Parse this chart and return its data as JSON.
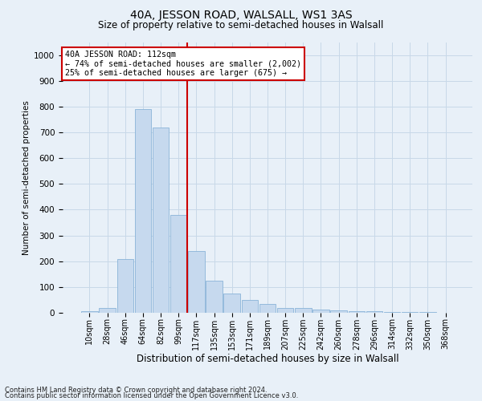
{
  "title": "40A, JESSON ROAD, WALSALL, WS1 3AS",
  "subtitle": "Size of property relative to semi-detached houses in Walsall",
  "xlabel": "Distribution of semi-detached houses by size in Walsall",
  "ylabel": "Number of semi-detached properties",
  "footnote1": "Contains HM Land Registry data © Crown copyright and database right 2024.",
  "footnote2": "Contains public sector information licensed under the Open Government Licence v3.0.",
  "bar_labels": [
    "10sqm",
    "28sqm",
    "46sqm",
    "64sqm",
    "82sqm",
    "99sqm",
    "117sqm",
    "135sqm",
    "153sqm",
    "171sqm",
    "189sqm",
    "207sqm",
    "225sqm",
    "242sqm",
    "260sqm",
    "278sqm",
    "296sqm",
    "314sqm",
    "332sqm",
    "350sqm",
    "368sqm"
  ],
  "bar_values": [
    5,
    20,
    210,
    790,
    720,
    380,
    240,
    125,
    75,
    50,
    35,
    20,
    20,
    12,
    8,
    5,
    5,
    3,
    2,
    2,
    1
  ],
  "bar_color": "#c6d9ee",
  "bar_edge_color": "#8ab4d8",
  "grid_color": "#c8d8e8",
  "background_color": "#e8f0f8",
  "vline_color": "#cc0000",
  "annotation_text": "40A JESSON ROAD: 112sqm\n← 74% of semi-detached houses are smaller (2,002)\n25% of semi-detached houses are larger (675) →",
  "annotation_box_color": "#ffffff",
  "annotation_box_edge": "#cc0000",
  "ylim": [
    0,
    1050
  ],
  "yticks": [
    0,
    100,
    200,
    300,
    400,
    500,
    600,
    700,
    800,
    900,
    1000
  ]
}
